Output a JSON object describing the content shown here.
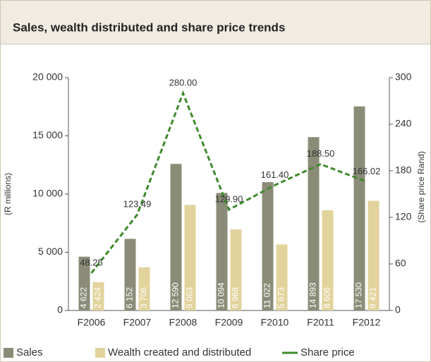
{
  "chart_data": {
    "type": "bar",
    "title": "Sales, wealth distributed and share price trends",
    "y_label": "(R millions)",
    "y2_label": "(Share price Rand)",
    "categories": [
      "F2006",
      "F2007",
      "F2008",
      "F2009",
      "F2010",
      "F2011",
      "F2012"
    ],
    "series": [
      {
        "name": "Sales",
        "type": "bar",
        "color": "#8b8c78",
        "values": [
          4622,
          6152,
          12590,
          10094,
          11022,
          14893,
          17530
        ],
        "value_labels": [
          "4 622",
          "6 152",
          "12 590",
          "10 094",
          "11 022",
          "14 893",
          "17 530"
        ]
      },
      {
        "name": "Wealth created and distributed",
        "type": "bar",
        "color": "#e2d39c",
        "values": [
          2424,
          3706,
          9063,
          6968,
          5673,
          8606,
          9421
        ],
        "value_labels": [
          "2 424",
          "3 706",
          "9 063",
          "6 968",
          "5 673",
          "8 606",
          "9 421"
        ]
      },
      {
        "name": "Share price",
        "type": "line",
        "axis": "y2",
        "color": "#3f8a2c",
        "values": [
          48.25,
          123.49,
          280.0,
          129.9,
          161.4,
          188.5,
          166.02
        ],
        "value_labels": [
          "48.25",
          "123.49",
          "280.00",
          "129.90",
          "161.40",
          "188.50",
          "166.02"
        ]
      }
    ],
    "ylim": [
      0,
      20000
    ],
    "yticks": [
      0,
      {
        "value": 5000,
        "label": "5 000"
      },
      {
        "value": 10000,
        "label": "10 000"
      },
      {
        "value": 15000,
        "label": "15 000"
      },
      {
        "value": 20000,
        "label": "20 000"
      }
    ],
    "y2lim": [
      0,
      300
    ],
    "y2ticks": [
      0,
      60,
      120,
      180,
      240,
      300
    ],
    "legend": "bottom"
  }
}
